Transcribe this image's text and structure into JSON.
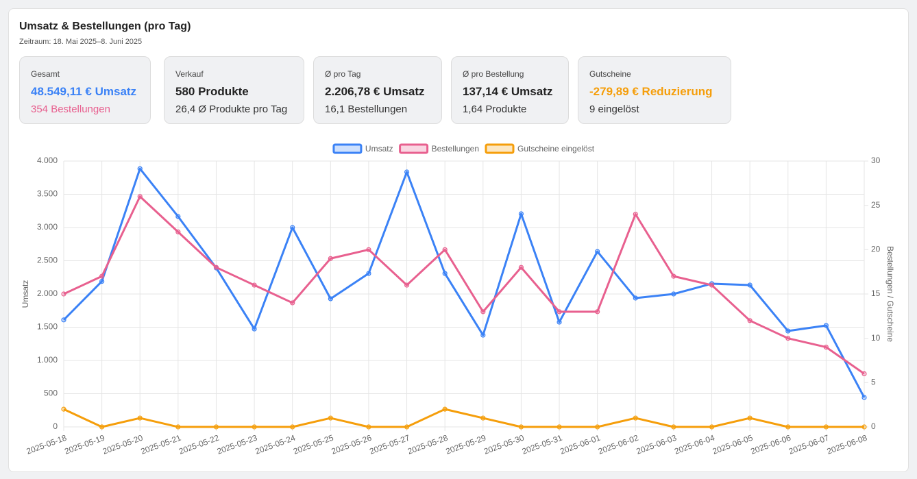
{
  "header": {
    "title": "Umsatz & Bestellungen (pro Tag)",
    "subtitle": "Zeitraum: 18. Mai 2025–8. Juni 2025"
  },
  "stats": [
    {
      "label": "Gesamt",
      "main": "48.549,11 € Umsatz",
      "sub": "354 Bestellungen"
    },
    {
      "label": "Verkauf",
      "main": "580 Produkte",
      "sub": "26,4 Ø Produkte pro Tag"
    },
    {
      "label": "Ø pro Tag",
      "main": "2.206,78 € Umsatz",
      "sub": "16,1 Bestellungen"
    },
    {
      "label": "Ø pro Bestellung",
      "main": "137,14 € Umsatz",
      "sub": "1,64 Produkte"
    },
    {
      "label": "Gutscheine",
      "main": "-279,89 € Reduzierung",
      "sub": "9 eingelöst"
    }
  ],
  "chart_data": {
    "type": "line",
    "y_label": "Umsatz",
    "y2_label": "Bestellungen / Gutscheine",
    "categories": [
      "2025-05-18",
      "2025-05-19",
      "2025-05-20",
      "2025-05-21",
      "2025-05-22",
      "2025-05-23",
      "2025-05-24",
      "2025-05-25",
      "2025-05-26",
      "2025-05-27",
      "2025-05-28",
      "2025-05-29",
      "2025-05-30",
      "2025-05-31",
      "2025-06-01",
      "2025-06-02",
      "2025-06-03",
      "2025-06-04",
      "2025-06-05",
      "2025-06-06",
      "2025-06-07",
      "2025-06-08"
    ],
    "series": [
      {
        "name": "Umsatz",
        "color": "#3b82f6",
        "axis": "y",
        "values": [
          1610,
          2190,
          3885,
          3165,
          2392,
          1474,
          3000,
          1928,
          2309,
          3835,
          2309,
          1381,
          3206,
          1577,
          2639,
          1938,
          2000,
          2155,
          2134,
          1443,
          1526,
          443
        ]
      },
      {
        "name": "Bestellungen",
        "color": "#e8608f",
        "axis": "y2",
        "values": [
          15,
          17,
          26,
          22,
          18,
          16,
          14,
          19,
          20,
          16,
          20,
          13,
          18,
          13,
          13,
          24,
          17,
          16,
          12,
          10,
          9,
          6
        ]
      },
      {
        "name": "Gutscheine eingelöst",
        "color": "#f59e0b",
        "axis": "y2",
        "values": [
          2,
          0,
          1,
          0,
          0,
          0,
          0,
          1,
          0,
          0,
          2,
          1,
          0,
          0,
          0,
          1,
          0,
          0,
          1,
          0,
          0,
          0
        ]
      }
    ],
    "ylim": [
      0,
      4000
    ],
    "yticks": [
      0,
      500,
      {
        "value": 1000,
        "label": "1.000"
      },
      {
        "value": 1500,
        "label": "1.500"
      },
      {
        "value": 2000,
        "label": "2.000"
      },
      {
        "value": 2500,
        "label": "2.500"
      },
      {
        "value": 3000,
        "label": "3.000"
      },
      {
        "value": 3500,
        "label": "3.500"
      },
      {
        "value": 4000,
        "label": "4.000"
      }
    ],
    "y2lim": [
      0,
      30
    ],
    "y2ticks": [
      0,
      5,
      10,
      15,
      20,
      25,
      30
    ],
    "grid": true,
    "legend": "top"
  }
}
